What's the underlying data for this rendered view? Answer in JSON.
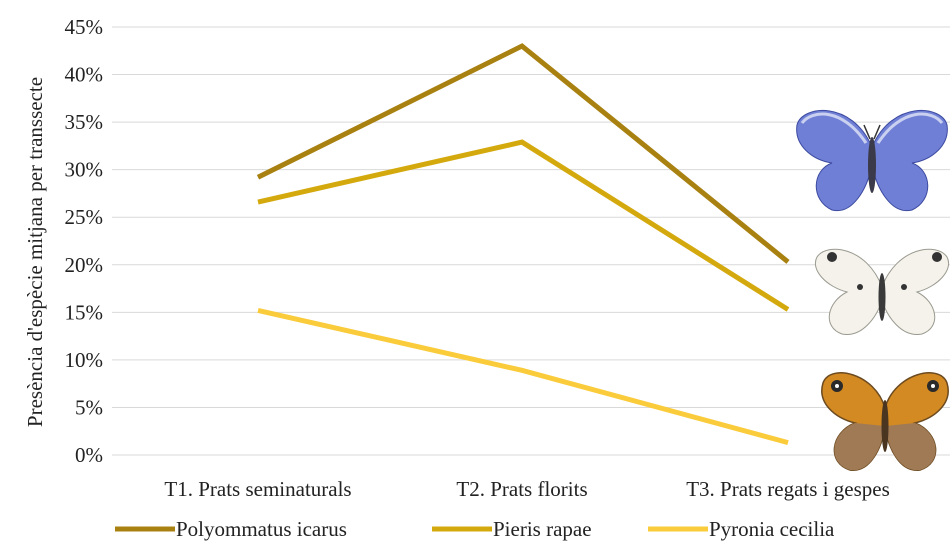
{
  "chart_data": {
    "type": "line",
    "categories": [
      "T1. Prats seminaturals",
      "T2. Prats florits",
      "T3. Prats regats i gespes"
    ],
    "series": [
      {
        "name": "Polyommatus icarus",
        "values": [
          29.2,
          43.0,
          20.3
        ],
        "color": "#A88111"
      },
      {
        "name": "Pieris rapae",
        "values": [
          26.6,
          32.9,
          15.3
        ],
        "color": "#D4A90E"
      },
      {
        "name": "Pyronia cecilia",
        "values": [
          15.2,
          8.9,
          1.3
        ],
        "color": "#FACB3A"
      }
    ],
    "title": "",
    "xlabel": "",
    "ylabel": "Presència d'espècie mitjana per transsecte",
    "ylim": [
      0,
      45
    ],
    "yticks": [
      "0%",
      "5%",
      "10%",
      "15%",
      "20%",
      "25%",
      "30%",
      "35%",
      "40%",
      "45%"
    ],
    "grid": true,
    "legend_position": "bottom",
    "decorations": [
      "blue-butterfly-icon",
      "white-butterfly-icon",
      "orange-butterfly-icon"
    ]
  }
}
